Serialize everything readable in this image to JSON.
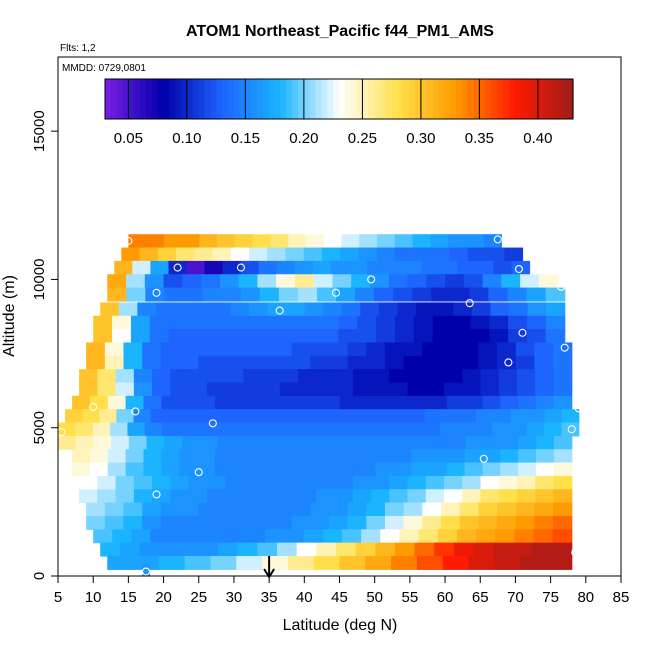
{
  "chart_data": {
    "type": "heatmap",
    "title": "ATOM1 Northeast_Pacific f44_PM1_AMS",
    "notes": {
      "flights": "Flts: 1,2",
      "dates": "MMDD: 0729,0801"
    },
    "xlabel": "Latitude (deg N)",
    "ylabel": "Altitude (m)",
    "xlim": [
      5,
      85
    ],
    "ylim": [
      0,
      17500
    ],
    "x_ticks": [
      5,
      10,
      15,
      20,
      25,
      30,
      35,
      40,
      45,
      50,
      55,
      60,
      65,
      70,
      75,
      80,
      85
    ],
    "y_ticks": [
      0,
      5000,
      10000,
      15000
    ],
    "colorbar": {
      "range": [
        0.03,
        0.43
      ],
      "ticks": [
        0.05,
        0.1,
        0.15,
        0.2,
        0.25,
        0.3,
        0.35,
        0.4
      ],
      "tick_labels": [
        "0.05",
        "0.10",
        "0.15",
        "0.20",
        "0.25",
        "0.30",
        "0.35",
        "0.40"
      ],
      "colors": [
        "#7a1fe6",
        "#0000aa",
        "#1e64ff",
        "#1ab4ff",
        "#ffffff",
        "#ffe04a",
        "#ff9a00",
        "#ff1a00",
        "#a01c1c"
      ]
    },
    "marker": {
      "latitude": 35,
      "symbol": "arrow-up"
    },
    "series": [
      {
        "alt": 11300,
        "lat_start": 15,
        "lat_end": 68,
        "values": [
          0.34,
          0.34,
          0.33,
          0.33,
          0.31,
          0.3,
          0.29,
          0.28,
          0.27,
          0.25,
          0.24,
          0.23,
          0.22,
          0.21,
          0.2,
          0.19,
          0.18,
          0.17,
          0.16,
          0.16,
          0.15
        ]
      },
      {
        "alt": 10850,
        "lat_start": 14,
        "lat_end": 71,
        "values": [
          0.33,
          0.31,
          0.29,
          0.27,
          0.26,
          0.25,
          0.23,
          0.22,
          0.21,
          0.2,
          0.19,
          0.18,
          0.17,
          0.16,
          0.15,
          0.14,
          0.14,
          0.14,
          0.13,
          0.12,
          0.12,
          0.11
        ]
      },
      {
        "alt": 10400,
        "lat_start": 13,
        "lat_end": 72,
        "values": [
          0.31,
          0.22,
          0.17,
          0.1,
          0.05,
          0.07,
          0.1,
          0.12,
          0.14,
          0.15,
          0.16,
          0.17,
          0.16,
          0.16,
          0.15,
          0.15,
          0.15,
          0.14,
          0.14,
          0.13,
          0.13,
          0.12,
          0.13
        ]
      },
      {
        "alt": 9950,
        "lat_start": 12,
        "lat_end": 76,
        "values": [
          0.32,
          0.21,
          0.16,
          0.12,
          0.13,
          0.14,
          0.16,
          0.18,
          0.21,
          0.24,
          0.26,
          0.22,
          0.2,
          0.18,
          0.16,
          0.14,
          0.13,
          0.12,
          0.11,
          0.12,
          0.15,
          0.18,
          0.22,
          0.24
        ]
      },
      {
        "alt": 9500,
        "lat_start": 12,
        "lat_end": 77,
        "values": [
          0.31,
          0.2,
          0.15,
          0.14,
          0.14,
          0.15,
          0.15,
          0.16,
          0.18,
          0.2,
          0.21,
          0.19,
          0.17,
          0.15,
          0.13,
          0.12,
          0.11,
          0.1,
          0.1,
          0.11,
          0.13,
          0.15,
          0.17,
          0.19
        ]
      },
      {
        "alt": 9000,
        "lat_start": 11,
        "lat_end": 77,
        "values": [
          0.3,
          0.21,
          0.15,
          0.14,
          0.14,
          0.14,
          0.14,
          0.15,
          0.16,
          0.17,
          0.17,
          0.16,
          0.15,
          0.14,
          0.12,
          0.11,
          0.1,
          0.09,
          0.09,
          0.1,
          0.11,
          0.13,
          0.14,
          0.16,
          0.17
        ]
      },
      {
        "alt": 8550,
        "lat_start": 10,
        "lat_end": 77,
        "values": [
          0.3,
          0.24,
          0.17,
          0.14,
          0.14,
          0.14,
          0.14,
          0.14,
          0.14,
          0.14,
          0.14,
          0.14,
          0.14,
          0.13,
          0.12,
          0.11,
          0.1,
          0.09,
          0.08,
          0.08,
          0.09,
          0.1,
          0.12,
          0.13,
          0.15
        ]
      },
      {
        "alt": 8100,
        "lat_start": 10,
        "lat_end": 77,
        "values": [
          0.3,
          0.23,
          0.17,
          0.14,
          0.13,
          0.13,
          0.13,
          0.13,
          0.13,
          0.13,
          0.13,
          0.13,
          0.13,
          0.12,
          0.12,
          0.11,
          0.1,
          0.09,
          0.08,
          0.08,
          0.08,
          0.09,
          0.11,
          0.12,
          0.14
        ]
      },
      {
        "alt": 7650,
        "lat_start": 9,
        "lat_end": 78,
        "values": [
          0.31,
          0.24,
          0.18,
          0.14,
          0.13,
          0.13,
          0.13,
          0.13,
          0.13,
          0.13,
          0.13,
          0.12,
          0.12,
          0.12,
          0.11,
          0.1,
          0.09,
          0.09,
          0.08,
          0.08,
          0.08,
          0.09,
          0.1,
          0.12,
          0.13,
          0.14
        ]
      },
      {
        "alt": 7200,
        "lat_start": 9,
        "lat_end": 78,
        "values": [
          0.31,
          0.25,
          0.18,
          0.14,
          0.13,
          0.13,
          0.12,
          0.12,
          0.12,
          0.12,
          0.12,
          0.12,
          0.11,
          0.11,
          0.1,
          0.1,
          0.09,
          0.08,
          0.08,
          0.08,
          0.08,
          0.09,
          0.1,
          0.11,
          0.13,
          0.14
        ]
      },
      {
        "alt": 6750,
        "lat_start": 8,
        "lat_end": 78,
        "values": [
          0.3,
          0.27,
          0.21,
          0.15,
          0.13,
          0.12,
          0.12,
          0.12,
          0.12,
          0.11,
          0.11,
          0.11,
          0.1,
          0.1,
          0.1,
          0.09,
          0.09,
          0.08,
          0.08,
          0.08,
          0.08,
          0.09,
          0.1,
          0.11,
          0.12,
          0.13,
          0.14
        ]
      },
      {
        "alt": 6300,
        "lat_start": 8,
        "lat_end": 78,
        "values": [
          0.3,
          0.27,
          0.22,
          0.16,
          0.13,
          0.12,
          0.12,
          0.11,
          0.11,
          0.11,
          0.11,
          0.1,
          0.1,
          0.1,
          0.1,
          0.09,
          0.09,
          0.09,
          0.08,
          0.08,
          0.09,
          0.09,
          0.1,
          0.11,
          0.12,
          0.13,
          0.14
        ]
      },
      {
        "alt": 5850,
        "lat_start": 7,
        "lat_end": 78,
        "values": [
          0.3,
          0.28,
          0.24,
          0.18,
          0.14,
          0.12,
          0.12,
          0.12,
          0.11,
          0.11,
          0.11,
          0.11,
          0.11,
          0.11,
          0.11,
          0.1,
          0.1,
          0.1,
          0.1,
          0.1,
          0.1,
          0.11,
          0.11,
          0.12,
          0.13,
          0.14,
          0.15,
          0.16
        ]
      },
      {
        "alt": 5400,
        "lat_start": 6,
        "lat_end": 79,
        "values": [
          0.29,
          0.28,
          0.26,
          0.2,
          0.15,
          0.13,
          0.13,
          0.13,
          0.13,
          0.13,
          0.13,
          0.13,
          0.13,
          0.13,
          0.13,
          0.13,
          0.13,
          0.13,
          0.13,
          0.13,
          0.13,
          0.14,
          0.14,
          0.14,
          0.15,
          0.15,
          0.16,
          0.16,
          0.17,
          0.18
        ]
      },
      {
        "alt": 4950,
        "lat_start": 5,
        "lat_end": 79,
        "values": [
          0.28,
          0.27,
          0.25,
          0.21,
          0.17,
          0.15,
          0.14,
          0.14,
          0.14,
          0.14,
          0.14,
          0.14,
          0.14,
          0.14,
          0.14,
          0.14,
          0.14,
          0.14,
          0.14,
          0.14,
          0.14,
          0.14,
          0.15,
          0.15,
          0.15,
          0.16,
          0.16,
          0.17,
          0.18,
          0.19
        ]
      },
      {
        "alt": 4500,
        "lat_start": 5,
        "lat_end": 78,
        "values": [
          0.26,
          0.25,
          0.24,
          0.22,
          0.2,
          0.18,
          0.17,
          0.16,
          0.16,
          0.15,
          0.15,
          0.15,
          0.15,
          0.15,
          0.15,
          0.15,
          0.15,
          0.15,
          0.15,
          0.15,
          0.15,
          0.15,
          0.15,
          0.16,
          0.16,
          0.16,
          0.17,
          0.18,
          0.19
        ]
      },
      {
        "alt": 4050,
        "lat_start": 7,
        "lat_end": 78,
        "values": [
          0.25,
          0.24,
          0.22,
          0.2,
          0.18,
          0.17,
          0.16,
          0.16,
          0.15,
          0.15,
          0.15,
          0.15,
          0.15,
          0.15,
          0.15,
          0.15,
          0.15,
          0.15,
          0.15,
          0.16,
          0.16,
          0.16,
          0.17,
          0.17,
          0.18,
          0.19,
          0.2,
          0.21
        ]
      },
      {
        "alt": 3600,
        "lat_start": 7,
        "lat_end": 78,
        "values": [
          0.24,
          0.23,
          0.21,
          0.19,
          0.18,
          0.17,
          0.16,
          0.16,
          0.15,
          0.15,
          0.15,
          0.15,
          0.15,
          0.15,
          0.15,
          0.15,
          0.15,
          0.16,
          0.16,
          0.17,
          0.17,
          0.18,
          0.19,
          0.2,
          0.21,
          0.22,
          0.23,
          0.24
        ]
      },
      {
        "alt": 3150,
        "lat_start": 8,
        "lat_end": 78,
        "values": [
          0.23,
          0.22,
          0.2,
          0.19,
          0.18,
          0.17,
          0.16,
          0.16,
          0.15,
          0.15,
          0.15,
          0.15,
          0.15,
          0.15,
          0.15,
          0.16,
          0.16,
          0.17,
          0.18,
          0.19,
          0.2,
          0.21,
          0.23,
          0.24,
          0.25,
          0.27,
          0.28
        ]
      },
      {
        "alt": 2700,
        "lat_start": 8,
        "lat_end": 78,
        "values": [
          0.22,
          0.21,
          0.2,
          0.18,
          0.17,
          0.16,
          0.16,
          0.15,
          0.15,
          0.15,
          0.15,
          0.15,
          0.15,
          0.16,
          0.16,
          0.17,
          0.18,
          0.19,
          0.2,
          0.22,
          0.23,
          0.25,
          0.27,
          0.28,
          0.29,
          0.3,
          0.31
        ]
      },
      {
        "alt": 2250,
        "lat_start": 9,
        "lat_end": 78,
        "values": [
          0.21,
          0.2,
          0.19,
          0.17,
          0.16,
          0.16,
          0.15,
          0.15,
          0.15,
          0.15,
          0.15,
          0.15,
          0.16,
          0.16,
          0.17,
          0.18,
          0.2,
          0.21,
          0.23,
          0.25,
          0.27,
          0.29,
          0.3,
          0.31,
          0.32,
          0.33
        ]
      },
      {
        "alt": 1800,
        "lat_start": 9,
        "lat_end": 78,
        "values": [
          0.2,
          0.19,
          0.18,
          0.16,
          0.15,
          0.15,
          0.15,
          0.15,
          0.15,
          0.15,
          0.15,
          0.16,
          0.16,
          0.17,
          0.18,
          0.2,
          0.22,
          0.24,
          0.26,
          0.28,
          0.3,
          0.31,
          0.32,
          0.33,
          0.34,
          0.35
        ]
      },
      {
        "alt": 1350,
        "lat_start": 10,
        "lat_end": 78,
        "values": [
          0.19,
          0.18,
          0.17,
          0.15,
          0.15,
          0.15,
          0.15,
          0.15,
          0.15,
          0.16,
          0.16,
          0.17,
          0.18,
          0.19,
          0.21,
          0.23,
          0.25,
          0.27,
          0.29,
          0.31,
          0.32,
          0.33,
          0.34,
          0.35,
          0.36
        ]
      },
      {
        "alt": 900,
        "lat_start": 11,
        "lat_end": 78,
        "values": [
          0.18,
          0.17,
          0.16,
          0.16,
          0.16,
          0.16,
          0.17,
          0.18,
          0.19,
          0.21,
          0.23,
          0.25,
          0.27,
          0.29,
          0.31,
          0.33,
          0.35,
          0.37,
          0.39,
          0.4,
          0.41,
          0.41,
          0.42,
          0.42
        ]
      },
      {
        "alt": 450,
        "lat_start": 12,
        "lat_end": 78,
        "values": [
          0.17,
          0.17,
          0.18,
          0.19,
          0.2,
          0.22,
          0.24,
          0.26,
          0.28,
          0.3,
          0.32,
          0.34,
          0.36,
          0.38,
          0.4,
          0.41,
          0.42,
          0.42
        ]
      },
      {
        "alt": 150,
        "lat_start": 17,
        "lat_end": 18,
        "values": [
          0.16
        ]
      }
    ],
    "samples": [
      {
        "lat": 15.0,
        "alt": 11300
      },
      {
        "lat": 67.5,
        "alt": 11350
      },
      {
        "lat": 22.0,
        "alt": 10400
      },
      {
        "lat": 31.0,
        "alt": 10400
      },
      {
        "lat": 70.5,
        "alt": 10350
      },
      {
        "lat": 19.0,
        "alt": 9550
      },
      {
        "lat": 44.5,
        "alt": 9550
      },
      {
        "lat": 49.5,
        "alt": 10000
      },
      {
        "lat": 76.5,
        "alt": 9750
      },
      {
        "lat": 36.5,
        "alt": 8950
      },
      {
        "lat": 63.5,
        "alt": 9200
      },
      {
        "lat": 71.0,
        "alt": 8200
      },
      {
        "lat": 77.0,
        "alt": 7700
      },
      {
        "lat": 69.0,
        "alt": 7200
      },
      {
        "lat": 10.0,
        "alt": 5700
      },
      {
        "lat": 16.0,
        "alt": 5550
      },
      {
        "lat": 27.0,
        "alt": 5150
      },
      {
        "lat": 79.0,
        "alt": 5650
      },
      {
        "lat": 78.0,
        "alt": 4950
      },
      {
        "lat": 5.5,
        "alt": 4850
      },
      {
        "lat": 65.5,
        "alt": 3950
      },
      {
        "lat": 25.0,
        "alt": 3500
      },
      {
        "lat": 19.0,
        "alt": 2750
      },
      {
        "lat": 78.5,
        "alt": 800
      },
      {
        "lat": 17.5,
        "alt": 150
      }
    ]
  }
}
